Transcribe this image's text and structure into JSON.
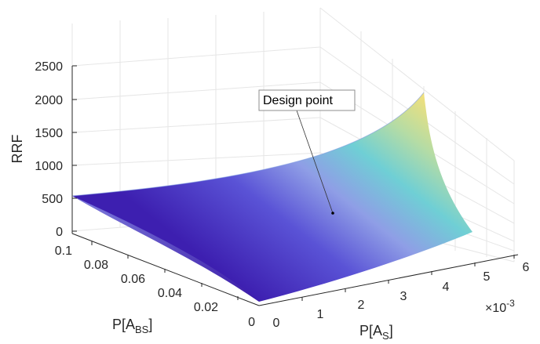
{
  "chart_data": {
    "type": "surface",
    "title": "",
    "zlabel": "RRF",
    "xlabel": {
      "base": "P[A",
      "sub": "S",
      "close": "]"
    },
    "ylabel": {
      "base": "P[A",
      "sub": "BS",
      "close": "]"
    },
    "x_exponent": {
      "base": "×10",
      "exp": "-3"
    },
    "x_axis": {
      "ticks": [
        "0",
        "1",
        "2",
        "3",
        "4",
        "5",
        "6"
      ],
      "range": [
        0,
        0.006
      ]
    },
    "y_axis": {
      "ticks": [
        "0",
        "0.02",
        "0.04",
        "0.06",
        "0.08",
        "0.1"
      ],
      "range": [
        0,
        0.1
      ]
    },
    "z_axis": {
      "ticks": [
        "0",
        "500",
        "1000",
        "1500",
        "2000",
        "2500"
      ],
      "range": [
        0,
        2500
      ]
    },
    "grid": true,
    "colormap": "parula",
    "surface_corners": [
      {
        "x": 0,
        "y": 0,
        "z": 0
      },
      {
        "x": 0.006,
        "y": 0,
        "z": 0
      },
      {
        "x": 0,
        "y": 0.1,
        "z": 550
      },
      {
        "x": 0.006,
        "y": 0.1,
        "z": 2150
      }
    ],
    "annotation": {
      "label": "Design point"
    }
  }
}
